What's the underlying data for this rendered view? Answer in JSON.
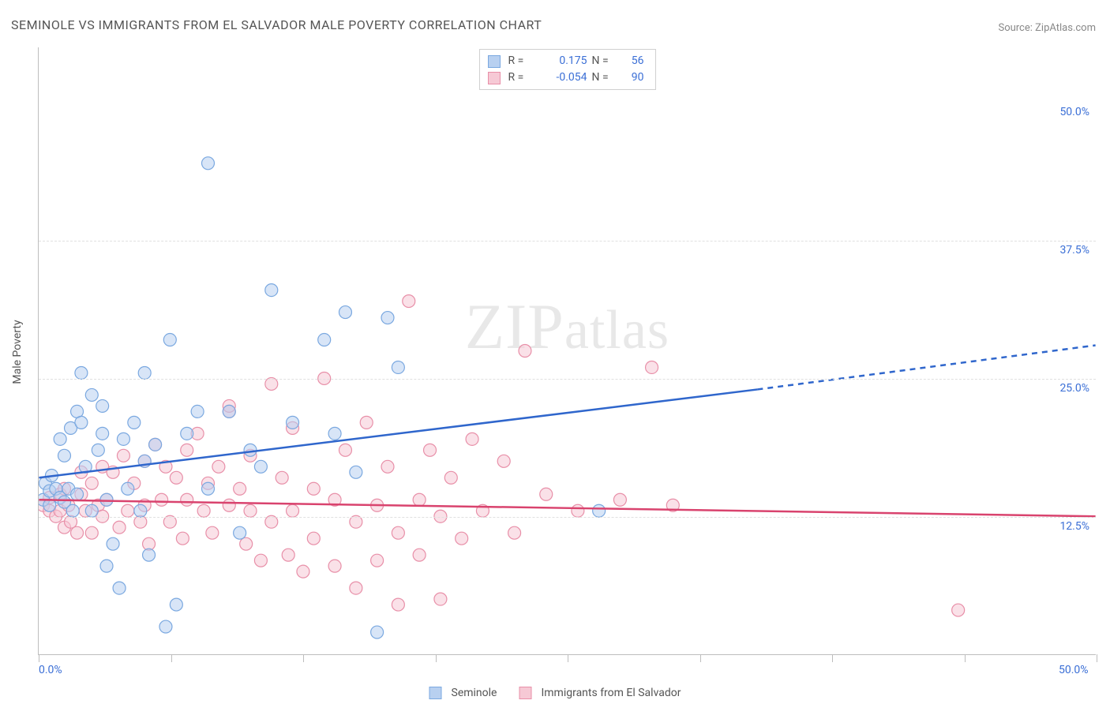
{
  "title": "SEMINOLE VS IMMIGRANTS FROM EL SALVADOR MALE POVERTY CORRELATION CHART",
  "source_label": "Source: ",
  "source_name": "ZipAtlas.com",
  "ylabel": "Male Poverty",
  "watermark": "ZIPatlas",
  "xlim": [
    0,
    50
  ],
  "ylim": [
    0,
    55
  ],
  "x_axis_labels": [
    {
      "v": 0,
      "t": "0.0%"
    },
    {
      "v": 50,
      "t": "50.0%"
    }
  ],
  "y_axis_labels": [
    {
      "v": 12.5,
      "t": "12.5%"
    },
    {
      "v": 25.0,
      "t": "25.0%"
    },
    {
      "v": 37.5,
      "t": "37.5%"
    },
    {
      "v": 50.0,
      "t": "50.0%"
    }
  ],
  "x_ticks": [
    0,
    6.25,
    12.5,
    18.75,
    25,
    31.25,
    37.5,
    43.75,
    50
  ],
  "grid_y": [
    12.5,
    25.0,
    37.5
  ],
  "series": {
    "a": {
      "name": "Seminole",
      "color_fill": "#b8d0f0",
      "color_stroke": "#7aa8e0",
      "line_color": "#2f66cc",
      "R": "0.175",
      "N": "56",
      "trend": {
        "solid": [
          [
            0,
            16.0
          ],
          [
            34,
            24.0
          ]
        ],
        "dash": [
          [
            34,
            24.0
          ],
          [
            50,
            28.0
          ]
        ]
      },
      "points": [
        [
          0.2,
          14.0
        ],
        [
          0.3,
          15.5
        ],
        [
          0.5,
          13.5
        ],
        [
          0.5,
          14.8
        ],
        [
          0.6,
          16.2
        ],
        [
          0.8,
          15.0
        ],
        [
          1.0,
          14.2
        ],
        [
          1.0,
          19.5
        ],
        [
          1.2,
          13.8
        ],
        [
          1.2,
          18.0
        ],
        [
          1.4,
          15.0
        ],
        [
          1.5,
          20.5
        ],
        [
          1.6,
          13.0
        ],
        [
          1.8,
          22.0
        ],
        [
          1.8,
          14.5
        ],
        [
          2.0,
          21.0
        ],
        [
          2.0,
          25.5
        ],
        [
          2.2,
          17.0
        ],
        [
          2.5,
          23.5
        ],
        [
          2.5,
          13.0
        ],
        [
          2.8,
          18.5
        ],
        [
          3.0,
          20.0
        ],
        [
          3.0,
          22.5
        ],
        [
          3.2,
          14.0
        ],
        [
          3.2,
          8.0
        ],
        [
          3.5,
          10.0
        ],
        [
          3.8,
          6.0
        ],
        [
          4.0,
          19.5
        ],
        [
          4.2,
          15.0
        ],
        [
          4.5,
          21.0
        ],
        [
          4.8,
          13.0
        ],
        [
          5.0,
          17.5
        ],
        [
          5.0,
          25.5
        ],
        [
          5.2,
          9.0
        ],
        [
          5.5,
          19.0
        ],
        [
          6.0,
          2.5
        ],
        [
          6.2,
          28.5
        ],
        [
          6.5,
          4.5
        ],
        [
          7.0,
          20.0
        ],
        [
          7.5,
          22.0
        ],
        [
          8.0,
          15.0
        ],
        [
          8.0,
          44.5
        ],
        [
          9.0,
          22.0
        ],
        [
          9.5,
          11.0
        ],
        [
          10.0,
          18.5
        ],
        [
          10.5,
          17.0
        ],
        [
          11.0,
          33.0
        ],
        [
          12.0,
          21.0
        ],
        [
          13.5,
          28.5
        ],
        [
          14.0,
          20.0
        ],
        [
          15.0,
          16.5
        ],
        [
          16.0,
          2.0
        ],
        [
          16.5,
          30.5
        ],
        [
          17.0,
          26.0
        ],
        [
          26.5,
          13.0
        ],
        [
          14.5,
          31.0
        ]
      ]
    },
    "b": {
      "name": "Immigrants from El Salvador",
      "color_fill": "#f6c9d5",
      "color_stroke": "#e88fa8",
      "line_color": "#d9436e",
      "R": "-0.054",
      "N": "90",
      "trend": {
        "solid": [
          [
            0,
            14.0
          ],
          [
            50,
            12.5
          ]
        ]
      },
      "points": [
        [
          0.2,
          13.5
        ],
        [
          0.5,
          13.0
        ],
        [
          0.5,
          14.2
        ],
        [
          0.8,
          12.5
        ],
        [
          1.0,
          14.5
        ],
        [
          1.0,
          13.0
        ],
        [
          1.2,
          11.5
        ],
        [
          1.2,
          15.0
        ],
        [
          1.4,
          13.5
        ],
        [
          1.5,
          12.0
        ],
        [
          1.8,
          11.0
        ],
        [
          2.0,
          14.5
        ],
        [
          2.0,
          16.5
        ],
        [
          2.2,
          13.0
        ],
        [
          2.5,
          15.5
        ],
        [
          2.5,
          11.0
        ],
        [
          2.8,
          13.5
        ],
        [
          3.0,
          12.5
        ],
        [
          3.0,
          17.0
        ],
        [
          3.2,
          14.0
        ],
        [
          3.5,
          16.5
        ],
        [
          3.8,
          11.5
        ],
        [
          4.0,
          18.0
        ],
        [
          4.2,
          13.0
        ],
        [
          4.5,
          15.5
        ],
        [
          4.8,
          12.0
        ],
        [
          5.0,
          17.5
        ],
        [
          5.0,
          13.5
        ],
        [
          5.2,
          10.0
        ],
        [
          5.5,
          19.0
        ],
        [
          5.8,
          14.0
        ],
        [
          6.0,
          17.0
        ],
        [
          6.2,
          12.0
        ],
        [
          6.5,
          16.0
        ],
        [
          6.8,
          10.5
        ],
        [
          7.0,
          18.5
        ],
        [
          7.0,
          14.0
        ],
        [
          7.5,
          20.0
        ],
        [
          7.8,
          13.0
        ],
        [
          8.0,
          15.5
        ],
        [
          8.2,
          11.0
        ],
        [
          8.5,
          17.0
        ],
        [
          9.0,
          13.5
        ],
        [
          9.0,
          22.0
        ],
        [
          9.5,
          15.0
        ],
        [
          9.8,
          10.0
        ],
        [
          10.0,
          18.0
        ],
        [
          10.0,
          13.0
        ],
        [
          10.5,
          8.5
        ],
        [
          11.0,
          24.5
        ],
        [
          11.0,
          12.0
        ],
        [
          11.5,
          16.0
        ],
        [
          11.8,
          9.0
        ],
        [
          12.0,
          20.5
        ],
        [
          12.0,
          13.0
        ],
        [
          12.5,
          7.5
        ],
        [
          13.0,
          15.0
        ],
        [
          13.0,
          10.5
        ],
        [
          13.5,
          25.0
        ],
        [
          14.0,
          14.0
        ],
        [
          14.0,
          8.0
        ],
        [
          14.5,
          18.5
        ],
        [
          15.0,
          12.0
        ],
        [
          15.0,
          6.0
        ],
        [
          15.5,
          21.0
        ],
        [
          16.0,
          13.5
        ],
        [
          16.0,
          8.5
        ],
        [
          16.5,
          17.0
        ],
        [
          17.0,
          4.5
        ],
        [
          17.0,
          11.0
        ],
        [
          17.5,
          32.0
        ],
        [
          18.0,
          14.0
        ],
        [
          18.0,
          9.0
        ],
        [
          18.5,
          18.5
        ],
        [
          19.0,
          12.5
        ],
        [
          19.0,
          5.0
        ],
        [
          19.5,
          16.0
        ],
        [
          20.0,
          10.5
        ],
        [
          20.5,
          19.5
        ],
        [
          21.0,
          13.0
        ],
        [
          22.0,
          17.5
        ],
        [
          22.5,
          11.0
        ],
        [
          23.0,
          27.5
        ],
        [
          24.0,
          14.5
        ],
        [
          25.5,
          13.0
        ],
        [
          27.5,
          14.0
        ],
        [
          29.0,
          26.0
        ],
        [
          30.0,
          13.5
        ],
        [
          43.5,
          4.0
        ],
        [
          9.0,
          22.5
        ]
      ]
    }
  }
}
